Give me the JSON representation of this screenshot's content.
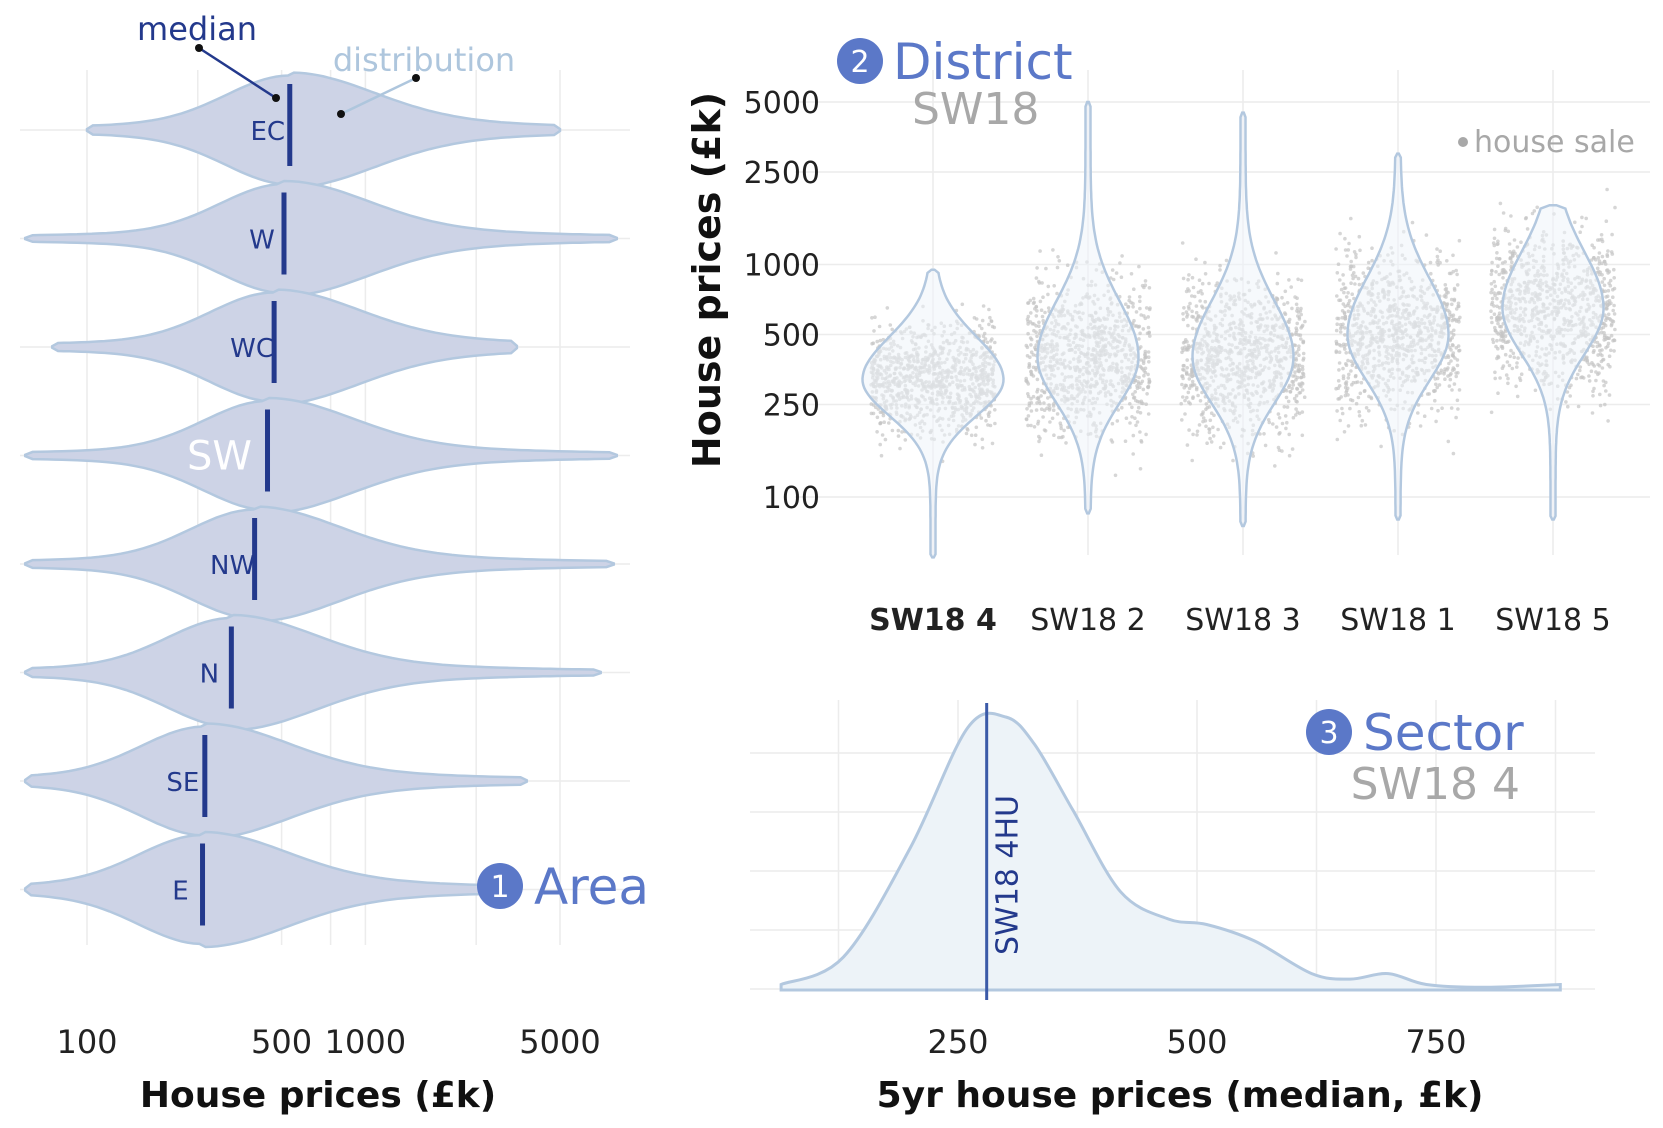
{
  "colors": {
    "violin_fill": "#cdd3e6",
    "violin_stroke": "#b3c8df",
    "median_line": "#23398c",
    "accent": "#5b78c8",
    "grey_text": "#a8a8a8",
    "annotation_light": "#aec6dd",
    "grid": "#ececec",
    "points": "#c4c4c4",
    "density_fill": "#edf3f8"
  },
  "chart_data": [
    {
      "type": "violin",
      "panel_number": "1",
      "panel_label": "Area",
      "xlabel": "House prices (£k)",
      "x_scale": "log",
      "xlim": [
        70,
        9000
      ],
      "x_ticks": [
        100,
        500,
        1000,
        5000
      ],
      "x_tick_labels": [
        "100",
        "500",
        "1000",
        "5000"
      ],
      "categories": [
        "EC",
        "W",
        "WC",
        "SW",
        "NW",
        "N",
        "SE",
        "E"
      ],
      "highlighted_category": "SW",
      "medians": [
        535,
        510,
        470,
        445,
        400,
        330,
        265,
        260
      ],
      "ranges": [
        [
          100,
          5000
        ],
        [
          60,
          8000
        ],
        [
          75,
          3500
        ],
        [
          60,
          8000
        ],
        [
          60,
          7800
        ],
        [
          60,
          7000
        ],
        [
          60,
          3800
        ],
        [
          60,
          3200
        ]
      ],
      "annotations": [
        {
          "text": "median",
          "points_to": "median line"
        },
        {
          "text": "distribution",
          "points_to": "violin outline"
        }
      ],
      "grid": true
    },
    {
      "type": "violin+jitter",
      "panel_number": "2",
      "panel_label": "District",
      "panel_sublabel": "SW18",
      "ylabel": "House prices (£k)",
      "y_scale": "log",
      "ylim": [
        45,
        6500
      ],
      "y_ticks": [
        100,
        250,
        500,
        1000,
        2500,
        5000
      ],
      "y_tick_labels": [
        "100",
        "250",
        "500",
        "1000",
        "2500",
        "5000"
      ],
      "categories": [
        "SW18 4",
        "SW18 2",
        "SW18 3",
        "SW18 1",
        "SW18 5"
      ],
      "highlighted_category": "SW18 4",
      "ranges": [
        [
          55,
          950
        ],
        [
          85,
          5000
        ],
        [
          75,
          4500
        ],
        [
          80,
          3000
        ],
        [
          80,
          1800
        ]
      ],
      "modes": [
        320,
        400,
        400,
        500,
        650
      ],
      "legend": "house sale",
      "grid": true
    },
    {
      "type": "area",
      "panel_number": "3",
      "panel_label": "Sector",
      "panel_sublabel": "SW18 4",
      "xlabel": "5yr house prices (median, £k)",
      "xlim": [
        60,
        900
      ],
      "x_ticks": [
        250,
        500,
        750
      ],
      "x_tick_labels": [
        "250",
        "500",
        "750"
      ],
      "density_x": [
        65,
        130,
        200,
        260,
        300,
        330,
        370,
        420,
        470,
        510,
        560,
        620,
        660,
        700,
        740,
        800,
        880
      ],
      "density_y": [
        0.02,
        0.12,
        0.52,
        0.96,
        1.0,
        0.9,
        0.66,
        0.36,
        0.26,
        0.24,
        0.18,
        0.06,
        0.04,
        0.06,
        0.02,
        0.01,
        0.02
      ],
      "reference_line": {
        "label": "SW18 4HU",
        "x": 280
      },
      "grid": true
    }
  ]
}
